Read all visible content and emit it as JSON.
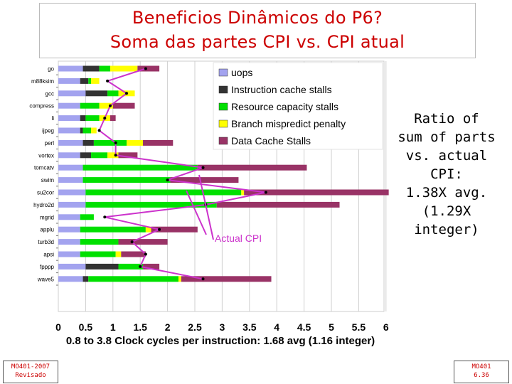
{
  "title": {
    "line1": "Beneficios Dinâmicos do P6?",
    "line2": "Soma das partes CPI vs. CPI atual"
  },
  "chart_data": {
    "type": "bar",
    "orientation": "horizontal",
    "stacked": true,
    "categories": [
      "go",
      "m88ksim",
      "gcc",
      "compress",
      "li",
      "ijpeg",
      "perl",
      "vortex",
      "tomcatv",
      "swim",
      "su2cor",
      "hydro2d",
      "mgrid",
      "applu",
      "turb3d",
      "apsi",
      "fpppp",
      "wave5"
    ],
    "series": [
      {
        "name": "uops",
        "color": "#a3a3ef",
        "values": [
          0.45,
          0.4,
          0.5,
          0.4,
          0.4,
          0.4,
          0.45,
          0.4,
          0.45,
          0.45,
          0.5,
          0.5,
          0.4,
          0.4,
          0.4,
          0.4,
          0.5,
          0.45
        ]
      },
      {
        "name": "Instruction cache stalls",
        "color": "#333333",
        "values": [
          0.3,
          0.15,
          0.4,
          0.0,
          0.1,
          0.05,
          0.2,
          0.2,
          0.0,
          0.0,
          0.0,
          0.0,
          0.0,
          0.0,
          0.0,
          0.0,
          0.6,
          0.1
        ]
      },
      {
        "name": "Resource capacity stalls",
        "color": "#00e000",
        "values": [
          0.2,
          0.05,
          0.2,
          0.35,
          0.25,
          0.15,
          0.6,
          0.3,
          2.1,
          1.6,
          2.85,
          2.4,
          0.25,
          1.2,
          0.7,
          0.65,
          0.45,
          1.65
        ]
      },
      {
        "name": "Branch mispredict penalty",
        "color": "#ffff00",
        "values": [
          0.5,
          0.15,
          0.3,
          0.25,
          0.2,
          0.1,
          0.3,
          0.2,
          0.0,
          0.0,
          0.05,
          0.0,
          0.0,
          0.1,
          0.0,
          0.1,
          0.0,
          0.05
        ]
      },
      {
        "name": "Data Cache Stalls",
        "color": "#993366",
        "values": [
          0.4,
          0.0,
          0.0,
          0.4,
          0.1,
          0.0,
          0.55,
          0.35,
          2.0,
          1.25,
          2.65,
          2.25,
          0.0,
          0.85,
          0.9,
          0.45,
          0.3,
          1.65
        ]
      }
    ],
    "actual_cpi": [
      1.6,
      0.9,
      1.25,
      0.95,
      0.85,
      0.75,
      1.05,
      1.05,
      2.65,
      2.0,
      3.8,
      2.7,
      0.85,
      1.85,
      1.35,
      1.6,
      1.5,
      2.65
    ],
    "actual_cpi_label": "Actual CPI",
    "xlim": [
      0,
      6
    ],
    "xticks": [
      "0",
      "0.5",
      "1",
      "1.5",
      "2",
      "2.5",
      "3",
      "3.5",
      "4",
      "4.5",
      "5",
      "5.5",
      "6"
    ],
    "xlabel": "0.8 to 3.8 Clock cycles per instruction: 1.68 avg (1.16 integer)",
    "legend_position": "top-right"
  },
  "side_note": {
    "lines": [
      "Ratio  of",
      "sum of parts",
      "vs. actual",
      "CPI:",
      "1.38X avg.",
      "(1.29X",
      "integer)"
    ]
  },
  "footer": {
    "left_line1": "MO401-2007",
    "left_line2": "Revisado",
    "right_line1": "MO401",
    "right_line2": "6.36"
  },
  "colors": {
    "title": "#cc0000",
    "pointer": "#cc33cc",
    "actual_label": "#cc33cc"
  }
}
